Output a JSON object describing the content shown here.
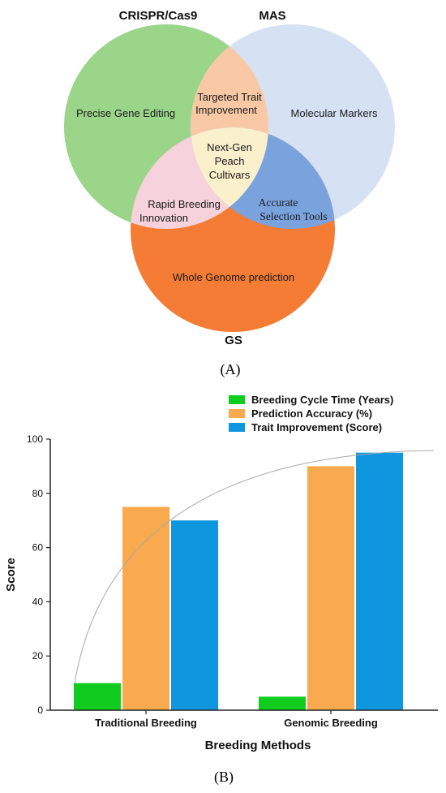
{
  "venn": {
    "sets": [
      {
        "name": "CRISPR/Cas9",
        "color": "#9ad58a"
      },
      {
        "name": "MAS",
        "color": "#d6e2f4"
      },
      {
        "name": "GS",
        "color": "#f47c35"
      }
    ],
    "regions": {
      "crispr_only": "Precise Gene Editing",
      "mas_only": "Molecular Markers",
      "gs_only": "Whole Genome prediction",
      "crispr_mas": [
        "Targeted Trait",
        "Improvement"
      ],
      "crispr_gs": [
        "Rapid Breeding",
        "Innovation"
      ],
      "mas_gs": [
        "Accurate",
        "Selection Tools"
      ],
      "center": [
        "Next-Gen",
        "Peach",
        "Cultivars"
      ]
    },
    "region_colors": {
      "crispr_mas": "#f9c9a6",
      "crispr_gs": "#f6d2dc",
      "mas_gs": "#7aa3de",
      "center": "#fbf0cc"
    },
    "panel_label": "(A)"
  },
  "chart_data": {
    "type": "bar",
    "categories": [
      "Traditional Breeding",
      "Genomic Breeding"
    ],
    "series": [
      {
        "name": "Breeding Cycle Time (Years)",
        "values": [
          10,
          5
        ],
        "color": "#0fcc1e"
      },
      {
        "name": "Prediction Accuracy (%)",
        "values": [
          75,
          90
        ],
        "color": "#f9a94e"
      },
      {
        "name": "Trait Improvement (Score)",
        "values": [
          70,
          95
        ],
        "color": "#0e96de"
      }
    ],
    "xlabel": "Breeding Methods",
    "ylabel": "Score",
    "ylim": [
      0,
      100
    ],
    "yticks": [
      0,
      20,
      40,
      60,
      80,
      100
    ],
    "legend_position": "top-right",
    "grid": false,
    "trend_curve": true,
    "panel_label": "(B)"
  }
}
